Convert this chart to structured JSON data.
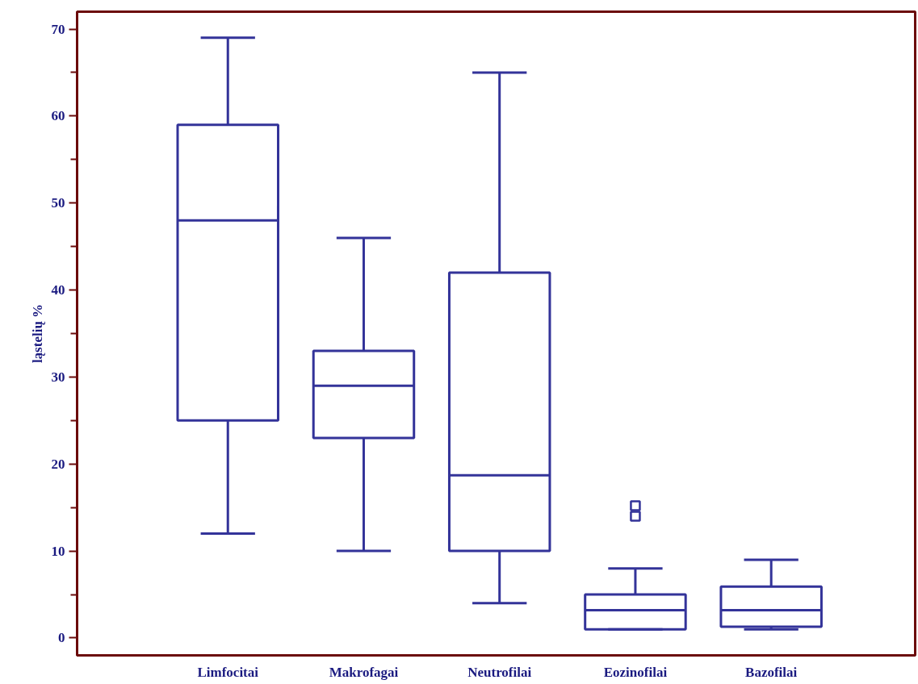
{
  "chart_data": {
    "type": "box",
    "ylabel": "ląstelių %",
    "categories": [
      "Limfocitai",
      "Makrofagai",
      "Neutrofilai",
      "Eozinofilai",
      "Bazofilai"
    ],
    "color": "#333399",
    "boxes": [
      {
        "low": 12,
        "q1": 25,
        "median": 48,
        "q3": 59,
        "high": 69
      },
      {
        "low": 10,
        "q1": 23,
        "median": 29,
        "q3": 33,
        "high": 46
      },
      {
        "low": 4,
        "q1": 10,
        "median": 18.7,
        "q3": 42,
        "high": 65
      },
      {
        "low": 1,
        "q1": 1,
        "median": 3.2,
        "q3": 5,
        "high": 8,
        "outliers": [
          14,
          15.2
        ]
      },
      {
        "low": 1,
        "q1": 1.3,
        "median": 3.2,
        "q3": 5.9,
        "high": 9
      }
    ],
    "marker": "square",
    "ylim": [
      -2,
      72
    ],
    "yticks": [
      0,
      10,
      20,
      30,
      40,
      50,
      60,
      70
    ],
    "grid": false
  }
}
